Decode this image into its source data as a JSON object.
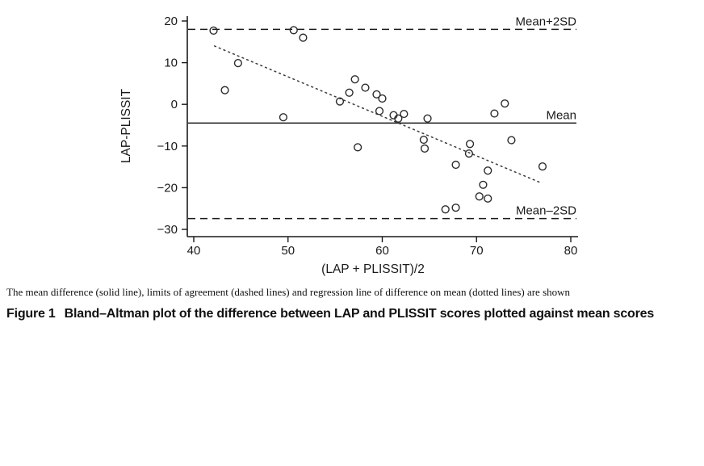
{
  "figure": {
    "note": "The mean difference (solid line), limits of agreement (dashed lines) and regression line of difference on mean (dotted lines) are shown",
    "label": "Figure 1",
    "caption": "Bland–Altman plot of the difference between LAP and PLISSIT scores plotted against mean scores"
  },
  "chart_data": {
    "type": "scatter",
    "title": "",
    "xlabel": "(LAP + PLISSIT)/2",
    "ylabel": "LAP-PLISSIT",
    "xlim": [
      39.7,
      80.8
    ],
    "ylim": [
      -31.7,
      21.2
    ],
    "x_ticks": [
      40,
      50,
      60,
      70,
      80
    ],
    "y_ticks": [
      20,
      10,
      0,
      -10,
      -20,
      -30
    ],
    "grid": false,
    "legend": "none",
    "marker": "open-circle",
    "points": [
      [
        42.1,
        17.7
      ],
      [
        50.6,
        17.8
      ],
      [
        51.6,
        16.0
      ],
      [
        44.7,
        9.9
      ],
      [
        43.3,
        3.4
      ],
      [
        49.5,
        -3.1
      ],
      [
        55.5,
        0.7
      ],
      [
        56.5,
        2.8
      ],
      [
        57.1,
        6.0
      ],
      [
        58.2,
        4.0
      ],
      [
        59.4,
        2.4
      ],
      [
        60.0,
        1.4
      ],
      [
        59.7,
        -1.6
      ],
      [
        61.2,
        -2.6
      ],
      [
        62.3,
        -2.3
      ],
      [
        61.7,
        -3.4
      ],
      [
        64.8,
        -3.4
      ],
      [
        73.0,
        0.2
      ],
      [
        71.9,
        -2.2
      ],
      [
        57.4,
        -10.3
      ],
      [
        64.4,
        -8.5
      ],
      [
        64.5,
        -10.6
      ],
      [
        69.3,
        -9.5
      ],
      [
        69.2,
        -11.8
      ],
      [
        67.8,
        -14.5
      ],
      [
        73.7,
        -8.6
      ],
      [
        71.2,
        -15.9
      ],
      [
        77.0,
        -14.9
      ],
      [
        70.7,
        -19.3
      ],
      [
        70.3,
        -22.1
      ],
      [
        71.2,
        -22.6
      ],
      [
        66.7,
        -25.2
      ],
      [
        67.8,
        -24.8
      ]
    ],
    "reference_lines": [
      {
        "name": "mean-plus-2sd",
        "label": "Mean+2SD",
        "value": 18.0,
        "style": "dashed"
      },
      {
        "name": "mean",
        "label": "Mean",
        "value": -4.5,
        "style": "solid"
      },
      {
        "name": "mean-minus-2sd",
        "label": "Mean–2SD",
        "value": -27.4,
        "style": "dashed"
      }
    ],
    "regression_line": {
      "style": "dotted",
      "x1": 42.2,
      "y1": 14.0,
      "x2": 76.8,
      "y2": -18.8
    },
    "colors": {
      "ink": "#1a1a1a",
      "marker": "#2b2b2b",
      "background": "#ffffff"
    }
  }
}
